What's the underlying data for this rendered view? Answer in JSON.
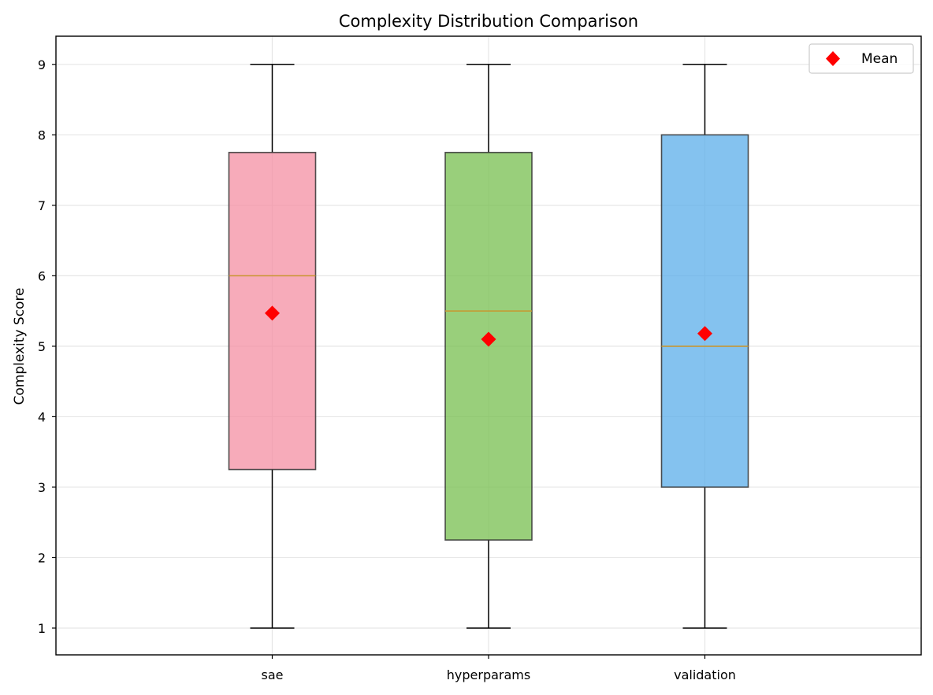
{
  "chart_data": {
    "type": "box",
    "title": "Complexity Distribution Comparison",
    "xlabel": "",
    "ylabel": "Complexity Score",
    "ylim": [
      0.62,
      9.4
    ],
    "yticks": [
      1,
      2,
      3,
      4,
      5,
      6,
      7,
      8,
      9
    ],
    "grid": true,
    "legend": {
      "placement": "top-right",
      "entries": [
        {
          "label": "Mean",
          "marker": "diamond",
          "color": "#ff0000"
        }
      ]
    },
    "categories": [
      "sae",
      "hyperparams",
      "validation"
    ],
    "boxes": [
      {
        "category": "sae",
        "whisker_low": 1,
        "q1": 3.25,
        "median": 6.0,
        "q3": 7.75,
        "whisker_high": 9,
        "mean": 5.47,
        "color": "#f48fa3"
      },
      {
        "category": "hyperparams",
        "whisker_low": 1,
        "q1": 2.25,
        "median": 5.5,
        "q3": 7.75,
        "whisker_high": 9,
        "mean": 5.1,
        "color": "#77bf4f"
      },
      {
        "category": "validation",
        "whisker_low": 1,
        "q1": 3.0,
        "median": 5.0,
        "q3": 8.0,
        "whisker_high": 9,
        "mean": 5.18,
        "color": "#5badea"
      }
    ],
    "colors": {
      "median_line": "#c8962e",
      "mean_marker": "#ff0000",
      "box_edge": "#333333",
      "whisker": "#000000",
      "grid": "#e6e6e6"
    }
  }
}
